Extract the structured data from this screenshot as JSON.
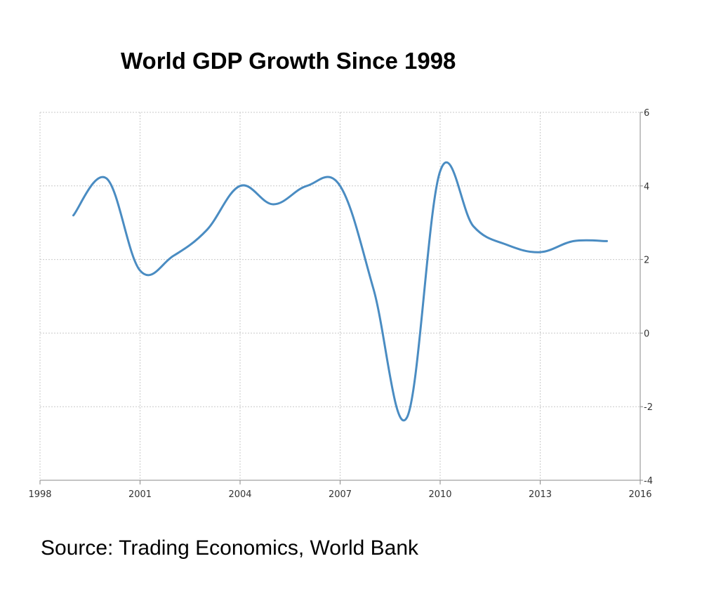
{
  "chart_data": {
    "type": "line",
    "title": "World GDP Growth Since 1998",
    "source": "Source: Trading Economics, World Bank",
    "xlabel": "",
    "ylabel": "",
    "xlim": [
      1998,
      2016
    ],
    "ylim": [
      -4,
      6
    ],
    "x_ticks": [
      1998,
      2001,
      2004,
      2007,
      2010,
      2013,
      2016
    ],
    "y_ticks": [
      -4,
      -2,
      0,
      2,
      4,
      6
    ],
    "y_axis_side": "right",
    "grid": true,
    "legend": "none",
    "series": [
      {
        "color": "#4a8cc2",
        "points": [
          [
            1999,
            3.2
          ],
          [
            2000,
            4.2
          ],
          [
            2001,
            1.7
          ],
          [
            2002,
            2.1
          ],
          [
            2003,
            2.8
          ],
          [
            2004,
            4.0
          ],
          [
            2005,
            3.5
          ],
          [
            2006,
            4.0
          ],
          [
            2007,
            4.0
          ],
          [
            2008,
            1.2
          ],
          [
            2009,
            -2.3
          ],
          [
            2010,
            4.4
          ],
          [
            2011,
            2.9
          ],
          [
            2012,
            2.4
          ],
          [
            2013,
            2.2
          ],
          [
            2014,
            2.5
          ],
          [
            2015,
            2.5
          ]
        ]
      }
    ]
  }
}
